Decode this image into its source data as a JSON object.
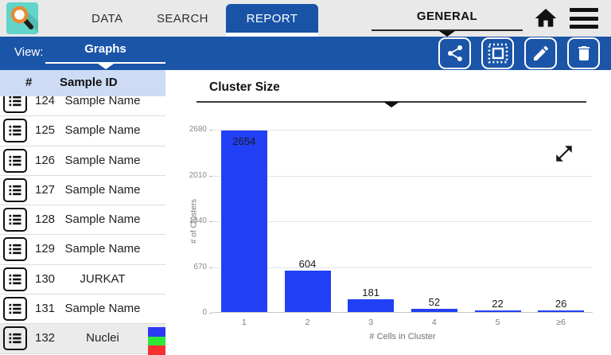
{
  "top_nav": {
    "tabs": [
      {
        "label": "DATA"
      },
      {
        "label": "SEARCH"
      },
      {
        "label": "REPORT",
        "active": true
      },
      {
        "label": "GENERAL",
        "underlined": true
      }
    ],
    "icons": [
      "app-logo-magnifier",
      "home-icon",
      "menu-icon"
    ]
  },
  "toolbar": {
    "view_label": "View:",
    "view_value": "Graphs",
    "buttons": [
      {
        "name": "share"
      },
      {
        "name": "select-area"
      },
      {
        "name": "edit"
      },
      {
        "name": "delete"
      }
    ],
    "background": "#1b55a8"
  },
  "sample_table": {
    "columns": [
      "#",
      "Sample ID"
    ],
    "rows": [
      {
        "num": "124",
        "name": "Sample Name"
      },
      {
        "num": "125",
        "name": "Sample Name"
      },
      {
        "num": "126",
        "name": "Sample Name"
      },
      {
        "num": "127",
        "name": "Sample Name"
      },
      {
        "num": "128",
        "name": "Sample Name"
      },
      {
        "num": "129",
        "name": "Sample Name"
      },
      {
        "num": "130",
        "name": "JURKAT"
      },
      {
        "num": "131",
        "name": "Sample Name"
      },
      {
        "num": "132",
        "name": "Nuclei",
        "selected": true,
        "swatches": [
          "#2b3af2",
          "#2ee838",
          "#f63030"
        ]
      }
    ]
  },
  "chart_data": {
    "type": "bar",
    "title": "Cluster Size",
    "categories": [
      "1",
      "2",
      "3",
      "4",
      "5",
      "≥6"
    ],
    "values": [
      2654,
      604,
      181,
      52,
      22,
      26
    ],
    "xlabel": "# Cells in Cluster",
    "ylabel": "# of Clusters",
    "ylim": [
      0,
      2680
    ],
    "yticks": [
      0,
      670,
      1340,
      2010,
      2680
    ],
    "bar_color": "#2140f5",
    "grid": true,
    "legend": "none"
  }
}
